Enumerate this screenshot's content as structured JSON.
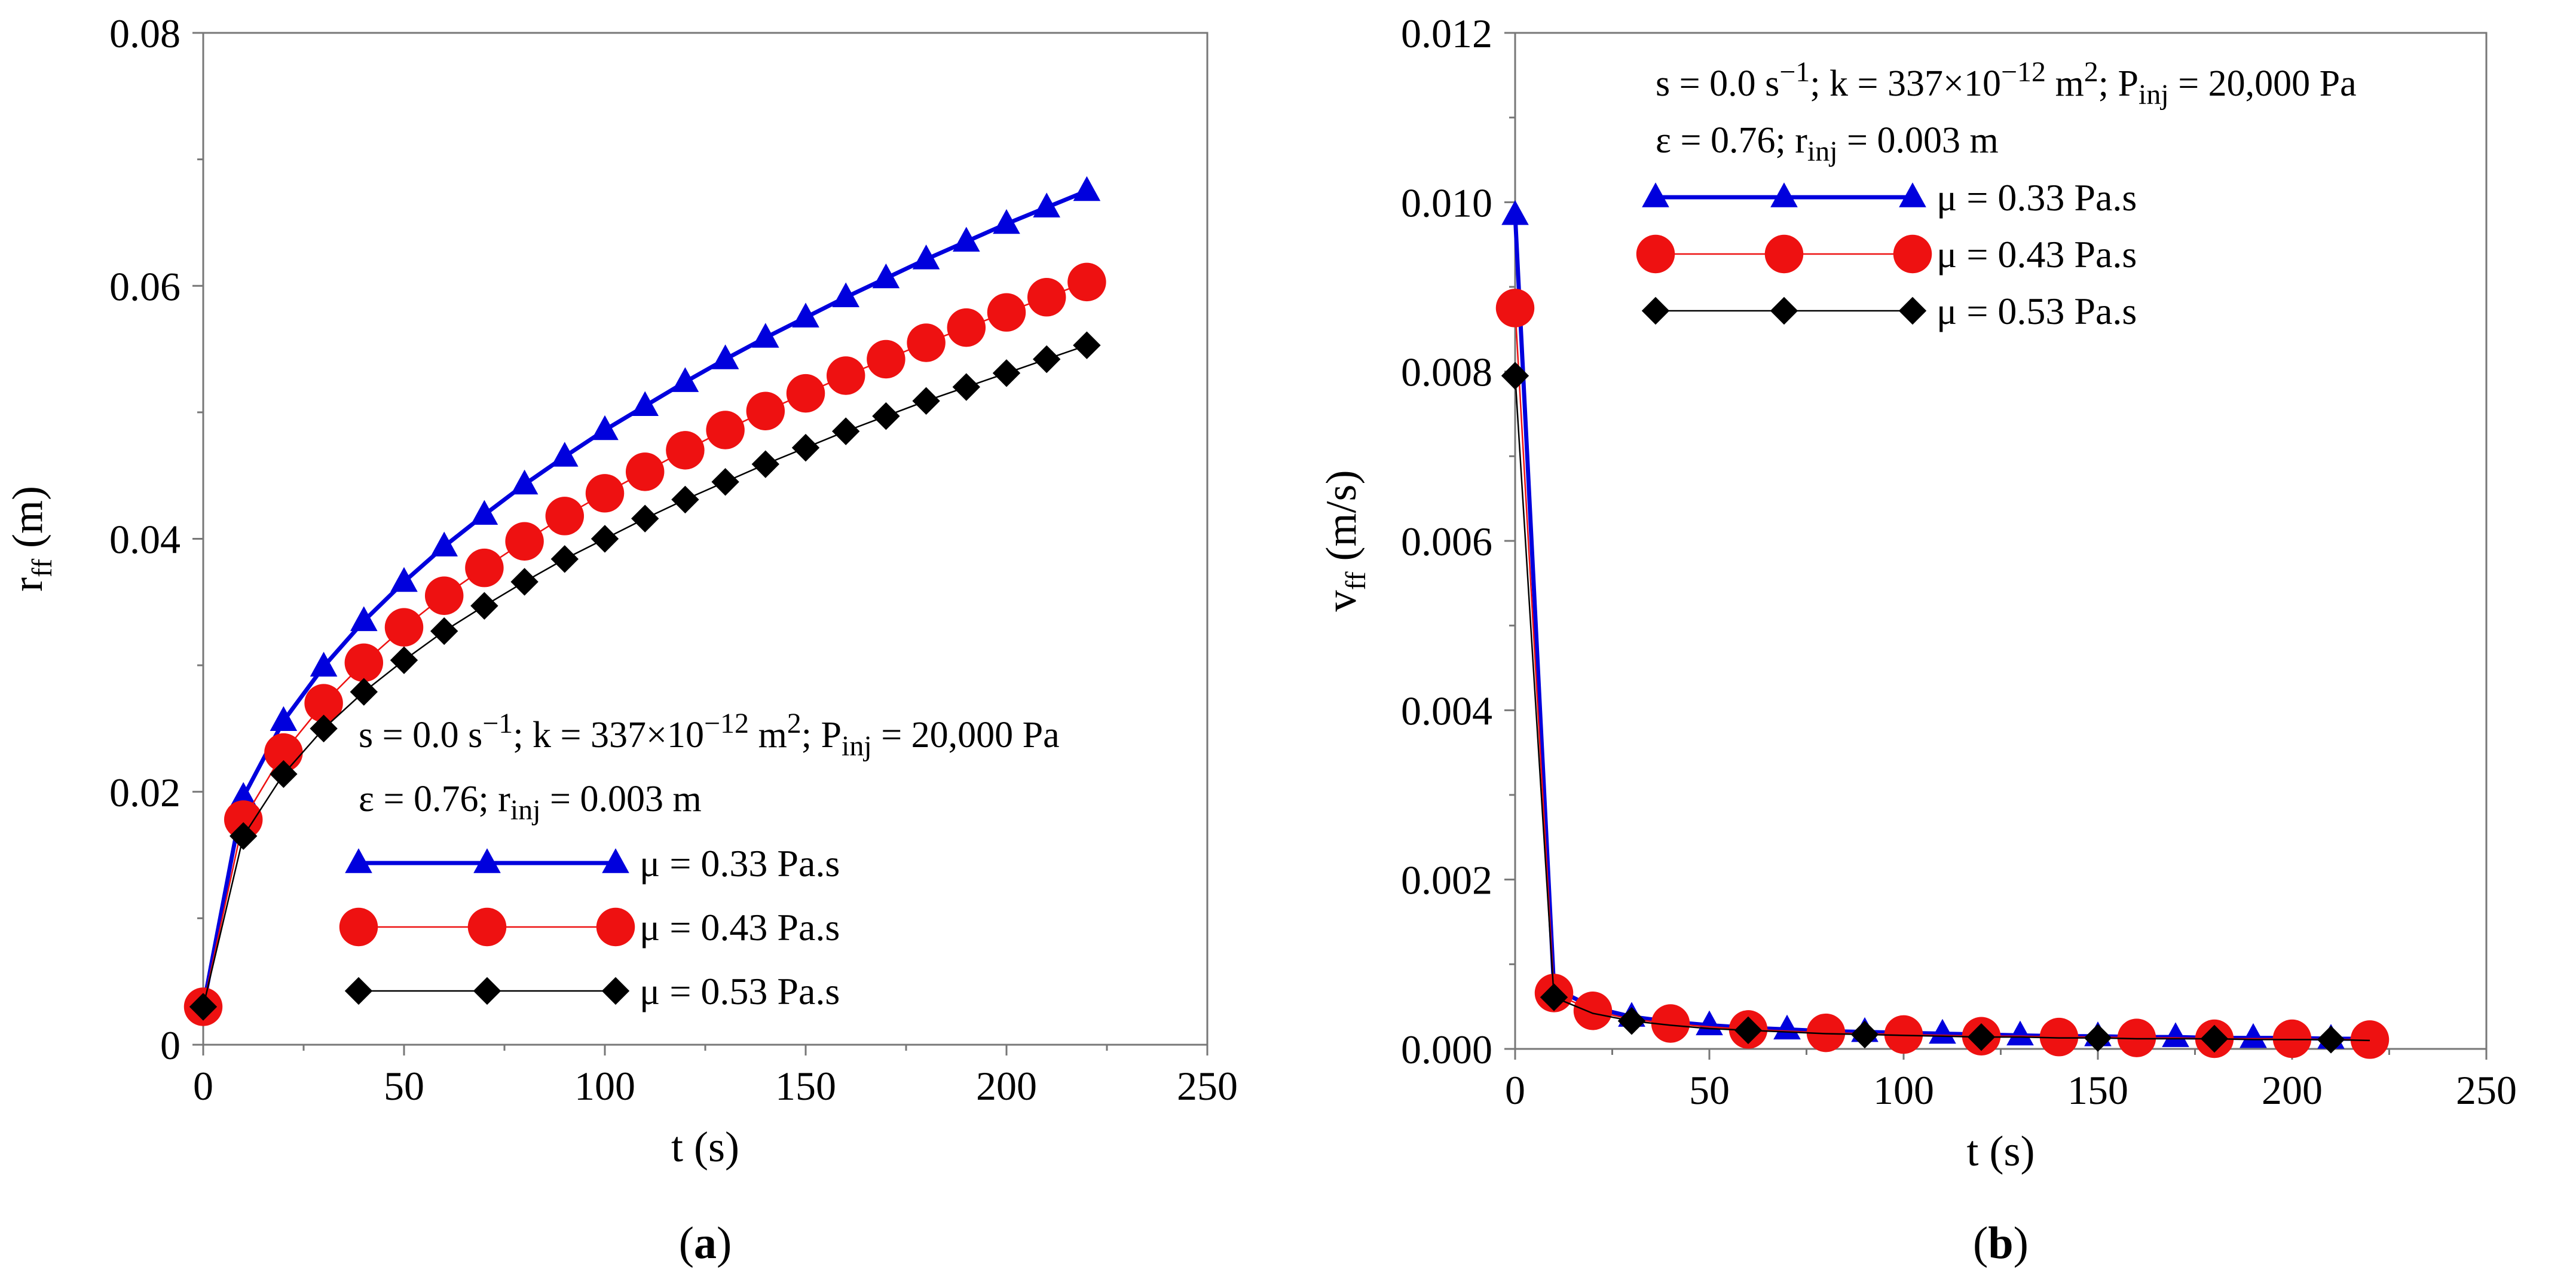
{
  "chart_data": [
    {
      "type": "line",
      "panel_label": "a",
      "xlabel": "t (s)",
      "ylabel": {
        "base": "r",
        "sub": "ff",
        "unit": "(m)"
      },
      "xlim": [
        0,
        250
      ],
      "ylim": [
        0,
        0.08
      ],
      "xticks": [
        "0",
        "50",
        "100",
        "150",
        "200",
        "250"
      ],
      "yticks": [
        "0",
        "0.02",
        "0.04",
        "0.06",
        "0.08"
      ],
      "x": [
        0,
        10,
        20,
        30,
        40,
        50,
        60,
        70,
        80,
        90,
        100,
        110,
        120,
        130,
        140,
        150,
        160,
        170,
        180,
        190,
        200,
        210,
        220
      ],
      "annotation": {
        "line1": {
          "s": "s = 0.0 s",
          "s_exp": "−1",
          "k": "; k = 337×10",
          "k_exp": "−12",
          "m": " m",
          "m_exp": "2",
          "p": "; P",
          "p_sub": "inj",
          "p_val": " = 20,000 Pa"
        },
        "line2": {
          "eps": "ε = 0.76; r",
          "r_sub": "inj",
          "r_val": " = 0.003 m"
        },
        "legend_position": "lower-right"
      },
      "series": [
        {
          "name": "μ = 0.33 Pa.s",
          "color": "#0000dd",
          "marker": "triangle",
          "values": [
            0.003,
            0.0196,
            0.0256,
            0.0299,
            0.0335,
            0.0366,
            0.0394,
            0.0419,
            0.0443,
            0.0465,
            0.0486,
            0.0505,
            0.0524,
            0.0542,
            0.0559,
            0.0575,
            0.0591,
            0.0606,
            0.0621,
            0.0635,
            0.0649,
            0.0662,
            0.0675
          ]
        },
        {
          "name": "μ = 0.43 Pa.s",
          "color": "#ee1111",
          "marker": "circle",
          "values": [
            0.003,
            0.0178,
            0.0231,
            0.027,
            0.0302,
            0.033,
            0.0355,
            0.0377,
            0.0398,
            0.0418,
            0.0436,
            0.0453,
            0.047,
            0.0486,
            0.0501,
            0.0515,
            0.0529,
            0.0542,
            0.0555,
            0.0567,
            0.0579,
            0.0591,
            0.0603
          ]
        },
        {
          "name": "μ = 0.53 Pa.s",
          "color": "#000000",
          "marker": "diamond",
          "values": [
            0.003,
            0.0165,
            0.0214,
            0.025,
            0.0279,
            0.0304,
            0.0327,
            0.0347,
            0.0366,
            0.0384,
            0.04,
            0.0416,
            0.0431,
            0.0445,
            0.0459,
            0.0472,
            0.0485,
            0.0497,
            0.0509,
            0.052,
            0.0531,
            0.0542,
            0.0553
          ]
        }
      ]
    },
    {
      "type": "line",
      "panel_label": "b",
      "xlabel": "t (s)",
      "ylabel": {
        "base": "v",
        "sub": "ff",
        "unit": "(m/s)"
      },
      "xlim": [
        0,
        250
      ],
      "ylim": [
        0,
        0.012
      ],
      "xticks": [
        "0",
        "50",
        "100",
        "150",
        "200",
        "250"
      ],
      "yticks": [
        "0.000",
        "0.002",
        "0.004",
        "0.006",
        "0.008",
        "0.010",
        "0.012"
      ],
      "x": [
        0,
        10,
        20,
        30,
        40,
        50,
        60,
        70,
        80,
        90,
        100,
        110,
        120,
        130,
        140,
        150,
        160,
        170,
        180,
        190,
        200,
        210,
        220
      ],
      "annotation": {
        "line1": {
          "s": "s = 0.0 s",
          "s_exp": "−1",
          "k": "; k = 337×10",
          "k_exp": "−12",
          "m": " m",
          "m_exp": "2",
          "p": "; P",
          "p_sub": "inj",
          "p_val": " = 20,000 Pa"
        },
        "line2": {
          "eps": "ε = 0.76; r",
          "r_sub": "inj",
          "r_val": " = 0.003 m"
        },
        "legend_position": "upper-right"
      },
      "series": [
        {
          "name": "μ = 0.33 Pa.s",
          "color": "#0000dd",
          "marker": "triangle",
          "values": [
            0.00985,
            0.00072,
            0.00049,
            0.00038,
            0.00032,
            0.00028,
            0.00025,
            0.00023,
            0.00021,
            0.0002,
            0.00019,
            0.00018,
            0.00017,
            0.00016,
            0.00015,
            0.00015,
            0.00014,
            0.00014,
            0.00013,
            0.00013,
            0.00013,
            0.00012,
            0.00012
          ]
        },
        {
          "name": "μ = 0.43 Pa.s",
          "color": "#ee1111",
          "marker": "circle",
          "values": [
            0.00875,
            0.00066,
            0.00045,
            0.00035,
            0.0003,
            0.00026,
            0.00023,
            0.00021,
            0.00019,
            0.00018,
            0.00017,
            0.00016,
            0.00015,
            0.00015,
            0.00014,
            0.00014,
            0.00013,
            0.00013,
            0.00012,
            0.00012,
            0.00012,
            0.00011,
            0.00011
          ]
        },
        {
          "name": "μ = 0.53 Pa.s",
          "color": "#000000",
          "marker": "diamond",
          "values": [
            0.00795,
            0.00061,
            0.00042,
            0.00033,
            0.00028,
            0.00024,
            0.00022,
            0.0002,
            0.00018,
            0.00017,
            0.00016,
            0.00015,
            0.00014,
            0.00014,
            0.00013,
            0.00013,
            0.00012,
            0.00012,
            0.00012,
            0.00011,
            0.00011,
            0.00011,
            0.0001
          ]
        }
      ]
    }
  ]
}
